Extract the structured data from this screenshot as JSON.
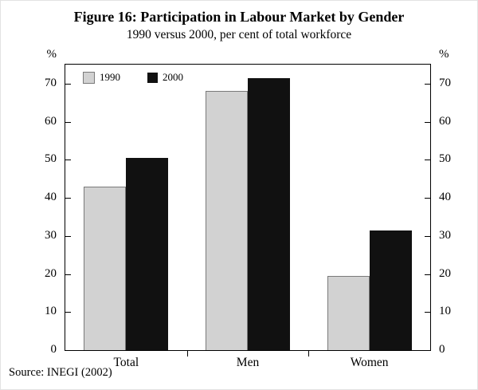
{
  "figure": {
    "title": "Figure 16: Participation in Labour Market by Gender",
    "subtitle": "1990 versus 2000, per cent of total workforce",
    "source": "Source: INEGI (2002)"
  },
  "chart_data": {
    "type": "bar",
    "title": "Figure 16: Participation in Labour Market by Gender",
    "subtitle": "1990 versus 2000, per cent of total workforce",
    "categories": [
      "Total",
      "Men",
      "Women"
    ],
    "series": [
      {
        "name": "1990",
        "color": "#d2d2d2",
        "values": [
          43,
          68,
          19.5
        ]
      },
      {
        "name": "2000",
        "color": "#111111",
        "values": [
          50.5,
          71.5,
          31.5
        ]
      }
    ],
    "y_axis": {
      "label": "%",
      "min": 0,
      "max": 75,
      "ticks": [
        0,
        10,
        20,
        30,
        40,
        50,
        60,
        70
      ]
    },
    "xlabel": "",
    "ylabel": "%",
    "ylim": [
      0,
      75
    ],
    "grid": false,
    "legend_position": "top-left-inside",
    "source": "Source: INEGI (2002)"
  }
}
